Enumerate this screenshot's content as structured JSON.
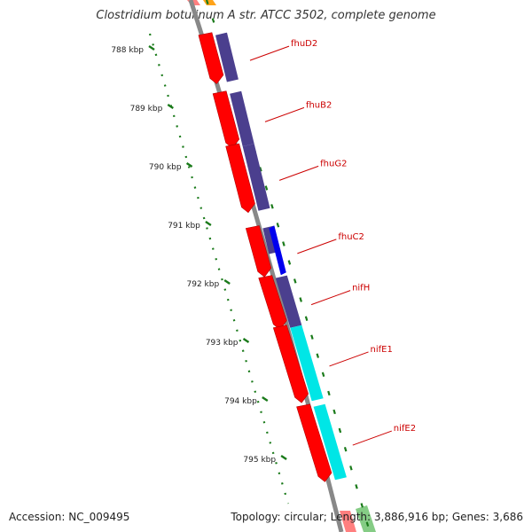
{
  "title": "Clostridium botulinum A str. ATCC 3502, complete genome",
  "accession": "Accession: NC_009495",
  "summary": "Topology: circular; Length: 3,886,916 bp; Genes: 3,686",
  "colors": {
    "backbone": "#888888",
    "ticks": "#1a7a1a",
    "gene_forward": "#ff0000",
    "cog_purple": "#4b3f8e",
    "cog_blue": "#0000ee",
    "cog_cyan": "#00e6e6",
    "cog_green": "#33aa33",
    "cog_orange": "#ff9900",
    "label": "#cc0000"
  },
  "scale": {
    "ticks": [
      "788 kbp",
      "789 kbp",
      "790 kbp",
      "791 kbp",
      "792 kbp",
      "793 kbp",
      "794 kbp",
      "795 kbp"
    ]
  },
  "genes": [
    {
      "name": "fhuD2",
      "start_kbp": 787.95,
      "end_kbp": 788.75,
      "cog": "purple"
    },
    {
      "name": "fhuB2",
      "start_kbp": 788.95,
      "end_kbp": 789.85,
      "cog": "purple"
    },
    {
      "name": "fhuG2",
      "start_kbp": 789.85,
      "end_kbp": 790.95,
      "cog": "purple"
    },
    {
      "name": "fhuC2",
      "start_kbp": 791.25,
      "end_kbp": 792.05,
      "cog": "purple_blue"
    },
    {
      "name": "nifH",
      "start_kbp": 792.1,
      "end_kbp": 792.95,
      "cog": "purple"
    },
    {
      "name": "nifE1",
      "start_kbp": 792.95,
      "end_kbp": 794.2,
      "cog": "cyan"
    },
    {
      "name": "nifE2",
      "start_kbp": 794.3,
      "end_kbp": 795.55,
      "cog": "cyan"
    }
  ]
}
